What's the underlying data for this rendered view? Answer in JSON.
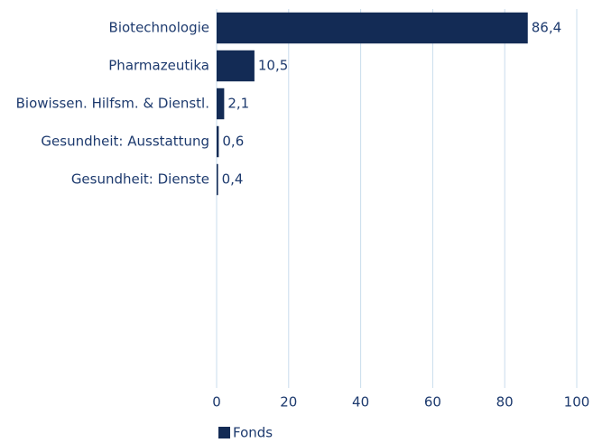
{
  "chart_data": {
    "type": "bar",
    "orientation": "horizontal",
    "categories": [
      "Biotechnologie",
      "Pharmazeutika",
      "Biowissen. Hilfsm. & Dienstl.",
      "Gesundheit: Ausstattung",
      "Gesundheit: Dienste",
      null,
      null,
      null,
      null,
      null
    ],
    "series": [
      {
        "name": "Fonds",
        "color": "#132b55",
        "values": [
          86.4,
          10.5,
          2.1,
          0.6,
          0.4,
          null,
          null,
          null,
          null,
          null
        ],
        "value_labels": [
          "86,4",
          "10,5",
          "2,1",
          "0,6",
          "0,4",
          null,
          null,
          null,
          null,
          null
        ]
      }
    ],
    "xlim": [
      0,
      100
    ],
    "xticks": [
      0,
      20,
      40,
      60,
      80,
      100
    ],
    "grid": true,
    "legend": "bottom-left"
  }
}
